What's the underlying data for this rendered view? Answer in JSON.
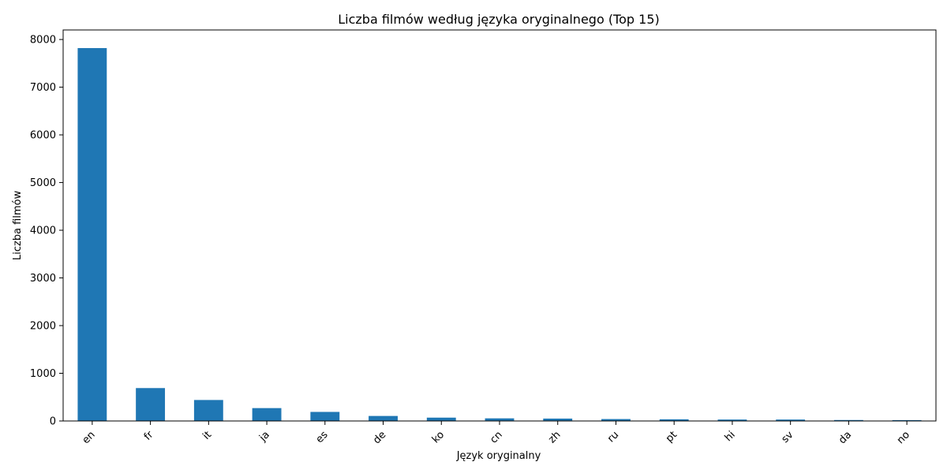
{
  "chart_data": {
    "type": "bar",
    "title": "Liczba filmów według języka oryginalnego (Top 15)",
    "xlabel": "Język oryginalny",
    "ylabel": "Liczba filmów",
    "categories": [
      "en",
      "fr",
      "it",
      "ja",
      "es",
      "de",
      "ko",
      "cn",
      "zh",
      "ru",
      "pt",
      "hi",
      "sv",
      "da",
      "no"
    ],
    "values": [
      7820,
      690,
      440,
      270,
      190,
      105,
      70,
      55,
      50,
      40,
      35,
      30,
      30,
      20,
      18
    ],
    "ylim": [
      0,
      8200
    ],
    "yticks": [
      0,
      1000,
      2000,
      3000,
      4000,
      5000,
      6000,
      7000,
      8000
    ],
    "grid": false,
    "legend": "none",
    "bar_color": "#1f77b4"
  }
}
